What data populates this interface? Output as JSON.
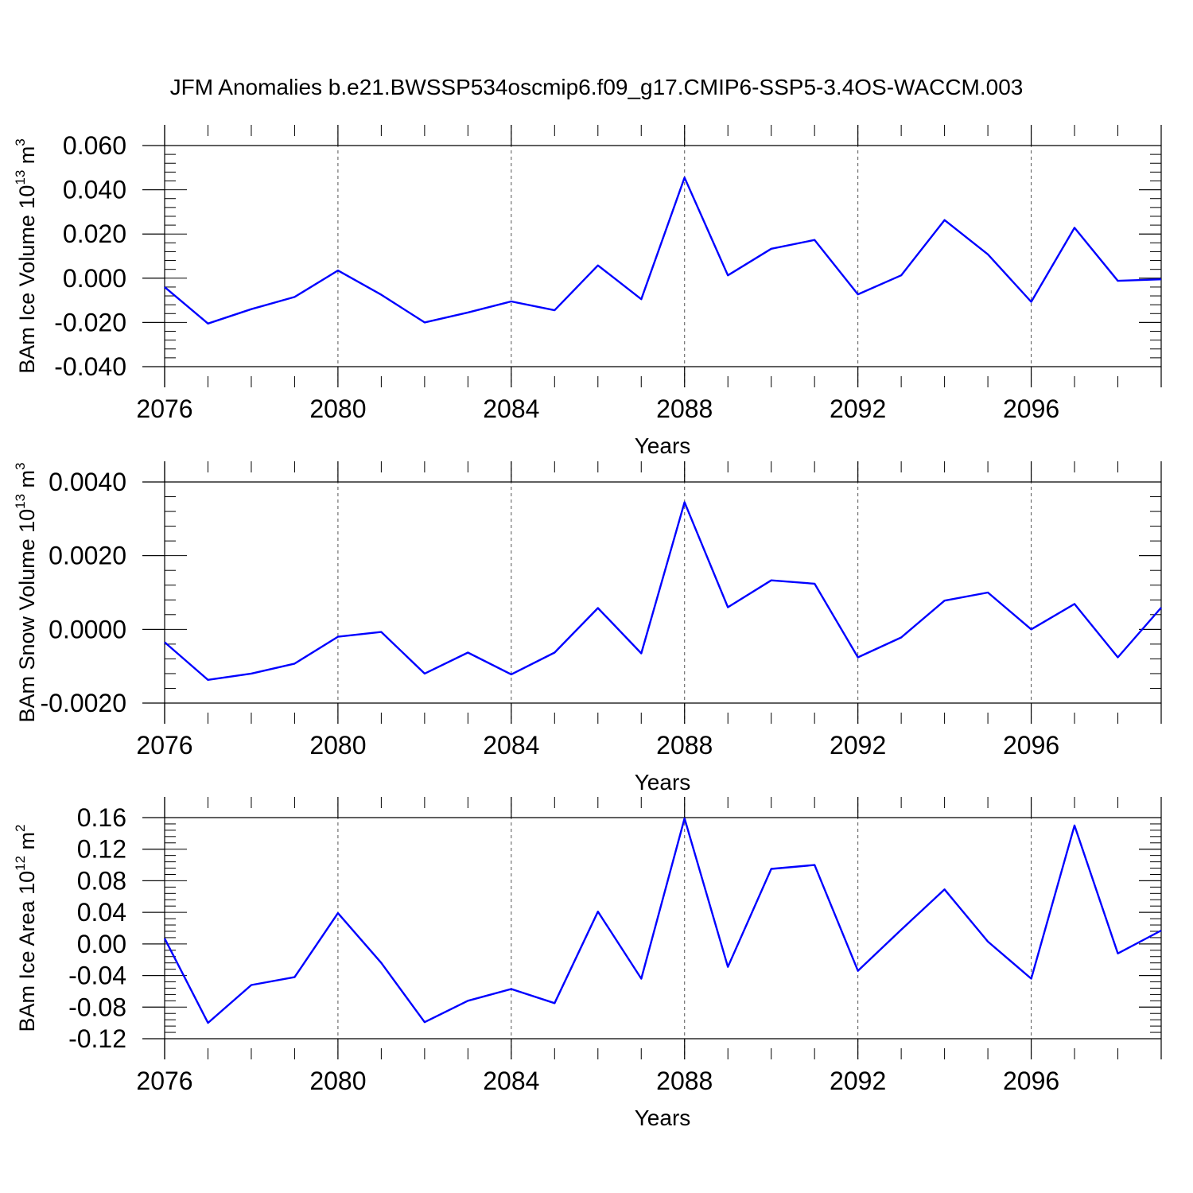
{
  "title": "JFM Anomalies b.e21.BWSSP534oscmip6.f09_g17.CMIP6-SSP5-3.4OS-WACCM.003",
  "colors": {
    "line": "#0000ff",
    "axis": "#000000",
    "grid": "#555555"
  },
  "chart_data": [
    {
      "type": "line",
      "ylabel": {
        "main": "BAm Ice Volume 10",
        "exp": "13",
        "unit": " m",
        "unit_exp": "3"
      },
      "xlabel": "Years",
      "xlim": [
        2076,
        2099
      ],
      "ylim": [
        -0.04,
        0.06
      ],
      "yticks": [
        -0.04,
        -0.02,
        0.0,
        0.02,
        0.04,
        0.06
      ],
      "ytick_labels": [
        "-0.040",
        "-0.020",
        "0.000",
        "0.020",
        "0.040",
        "0.060"
      ],
      "xticks": [
        2076,
        2080,
        2084,
        2088,
        2092,
        2096
      ],
      "xtick_labels": [
        "2076",
        "2080",
        "2084",
        "2088",
        "2092",
        "2096"
      ],
      "grid": "vertical dashed at major x ticks",
      "series": [
        {
          "x": [
            2076,
            2077,
            2078,
            2079,
            2080,
            2081,
            2082,
            2083,
            2084,
            2085,
            2086,
            2087,
            2088,
            2089,
            2090,
            2091,
            2092,
            2093,
            2094,
            2095,
            2096,
            2097,
            2098,
            2099
          ],
          "values": [
            -0.004,
            -0.0205,
            -0.014,
            -0.0085,
            0.0035,
            -0.0075,
            -0.02,
            -0.0155,
            -0.0105,
            -0.0145,
            0.0058,
            -0.0095,
            0.0455,
            0.0013,
            0.0133,
            0.0173,
            -0.0073,
            0.0013,
            0.0263,
            0.0108,
            -0.0107,
            0.0228,
            -0.0012,
            -0.0005
          ]
        }
      ]
    },
    {
      "type": "line",
      "ylabel": {
        "main": "BAm Snow Volume 10",
        "exp": "13",
        "unit": " m",
        "unit_exp": "3"
      },
      "xlabel": "Years",
      "xlim": [
        2076,
        2099
      ],
      "ylim": [
        -0.002,
        0.004
      ],
      "yticks": [
        -0.002,
        0.0,
        0.002,
        0.004
      ],
      "ytick_labels": [
        "-0.0020",
        "0.0000",
        "0.0020",
        "0.0040"
      ],
      "xticks": [
        2076,
        2080,
        2084,
        2088,
        2092,
        2096
      ],
      "xtick_labels": [
        "2076",
        "2080",
        "2084",
        "2088",
        "2092",
        "2096"
      ],
      "grid": "vertical dashed at major x ticks",
      "series": [
        {
          "x": [
            2076,
            2077,
            2078,
            2079,
            2080,
            2081,
            2082,
            2083,
            2084,
            2085,
            2086,
            2087,
            2088,
            2089,
            2090,
            2091,
            2092,
            2093,
            2094,
            2095,
            2096,
            2097,
            2098,
            2099
          ],
          "values": [
            -0.00035,
            -0.00137,
            -0.0012,
            -0.00093,
            -0.0002,
            -7e-05,
            -0.0012,
            -0.00063,
            -0.00122,
            -0.00063,
            0.00058,
            -0.00065,
            0.00345,
            0.0006,
            0.00133,
            0.00124,
            -0.00076,
            -0.00022,
            0.00078,
            0.001,
            0.0,
            0.00069,
            -0.00076,
            0.00059
          ]
        }
      ]
    },
    {
      "type": "line",
      "ylabel": {
        "main": "BAm Ice Area 10",
        "exp": "12",
        "unit": " m",
        "unit_exp": "2"
      },
      "xlabel": "Years",
      "xlim": [
        2076,
        2099
      ],
      "ylim": [
        -0.12,
        0.16
      ],
      "yticks": [
        -0.12,
        -0.08,
        -0.04,
        0.0,
        0.04,
        0.08,
        0.12,
        0.16
      ],
      "ytick_labels": [
        "-0.12",
        "-0.08",
        "-0.04",
        "0.00",
        "0.04",
        "0.08",
        "0.12",
        "0.16"
      ],
      "xticks": [
        2076,
        2080,
        2084,
        2088,
        2092,
        2096
      ],
      "xtick_labels": [
        "2076",
        "2080",
        "2084",
        "2088",
        "2092",
        "2096"
      ],
      "grid": "vertical dashed at major x ticks",
      "series": [
        {
          "x": [
            2076,
            2077,
            2078,
            2079,
            2080,
            2081,
            2082,
            2083,
            2084,
            2085,
            2086,
            2087,
            2088,
            2089,
            2090,
            2091,
            2092,
            2093,
            2094,
            2095,
            2096,
            2097,
            2098,
            2099
          ],
          "values": [
            0.007,
            -0.1,
            -0.052,
            -0.042,
            0.039,
            -0.024,
            -0.099,
            -0.072,
            -0.057,
            -0.075,
            0.041,
            -0.044,
            0.159,
            -0.029,
            0.095,
            0.1,
            -0.034,
            0.018,
            0.069,
            0.003,
            -0.044,
            0.15,
            -0.012,
            0.017
          ]
        }
      ]
    }
  ]
}
